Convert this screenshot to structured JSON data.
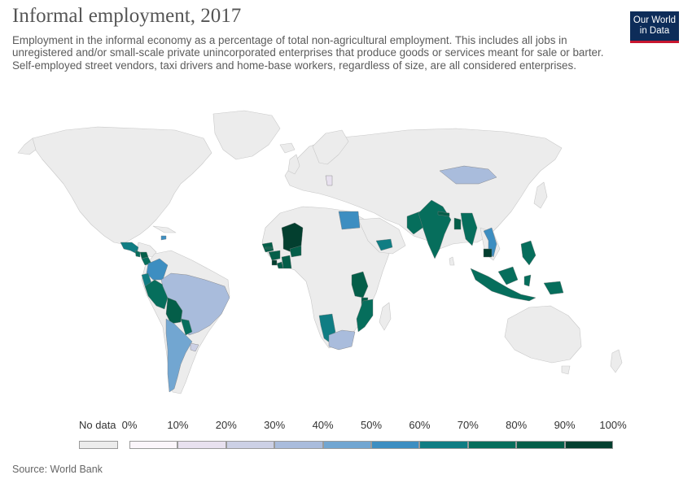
{
  "header": {
    "title": "Informal employment, 2017",
    "subtitle": "Employment in the informal economy as a percentage of total non-agricultural employment. This includes all jobs in unregistered and/or small-scale private unincorporated enterprises that produce goods or services meant for sale or barter. Self-employed street vendors, taxi drivers and home-base workers, regardless of size, are all considered enterprises."
  },
  "logo": {
    "line1": "Our World",
    "line2": "in Data"
  },
  "legend": {
    "no_data_label": "No data",
    "no_data_color": "#ececec",
    "ticks": [
      "0%",
      "10%",
      "20%",
      "30%",
      "40%",
      "50%",
      "60%",
      "70%",
      "80%",
      "90%",
      "100%"
    ],
    "colors": [
      "#fbf6fb",
      "#e8e1ef",
      "#ccd0e5",
      "#a9bcdc",
      "#72a6d1",
      "#3d8ec1",
      "#107d83",
      "#066e5c",
      "#045e49",
      "#033f2f"
    ]
  },
  "source": "Source: World Bank",
  "map_colors": {
    "land": "#ececec",
    "border": "#c8c8c8",
    "ocean": "#ffffff"
  },
  "regions": [
    {
      "name": "Mexico",
      "value": 57
    },
    {
      "name": "Guatemala",
      "value": 80
    },
    {
      "name": "Honduras",
      "value": 82
    },
    {
      "name": "El Salvador",
      "value": 68
    },
    {
      "name": "Dominican Republic",
      "value": 50
    },
    {
      "name": "Colombia",
      "value": 58
    },
    {
      "name": "Ecuador",
      "value": 70
    },
    {
      "name": "Peru",
      "value": 72
    },
    {
      "name": "Brazil",
      "value": 38
    },
    {
      "name": "Bolivia",
      "value": 82
    },
    {
      "name": "Paraguay",
      "value": 72
    },
    {
      "name": "Argentina",
      "value": 48
    },
    {
      "name": "Uruguay",
      "value": 26
    },
    {
      "name": "Mali",
      "value": 95
    },
    {
      "name": "Senegal",
      "value": 90
    },
    {
      "name": "Gambia",
      "value": 86
    },
    {
      "name": "Guinea",
      "value": 85
    },
    {
      "name": "Sierra Leone",
      "value": 92
    },
    {
      "name": "Liberia",
      "value": 88
    },
    {
      "name": "Cote d'Ivoire",
      "value": 87
    },
    {
      "name": "Burkina Faso",
      "value": 89
    },
    {
      "name": "Egypt",
      "value": 53
    },
    {
      "name": "Yemen",
      "value": 73
    },
    {
      "name": "Tanzania",
      "value": 80
    },
    {
      "name": "Malawi",
      "value": 85
    },
    {
      "name": "Mozambique",
      "value": 82
    },
    {
      "name": "Namibia",
      "value": 62
    },
    {
      "name": "South Africa",
      "value": 33
    },
    {
      "name": "Pakistan",
      "value": 78
    },
    {
      "name": "India",
      "value": 80
    },
    {
      "name": "Nepal",
      "value": 83
    },
    {
      "name": "Bangladesh",
      "value": 82
    },
    {
      "name": "Myanmar",
      "value": 78
    },
    {
      "name": "Cambodia",
      "value": 92
    },
    {
      "name": "Vietnam",
      "value": 55
    },
    {
      "name": "Mongolia",
      "value": 35
    },
    {
      "name": "Indonesia",
      "value": 78
    },
    {
      "name": "Philippines",
      "value": 74
    },
    {
      "name": "Papua New Guinea",
      "value": 79
    },
    {
      "name": "Serbia",
      "value": 18
    }
  ]
}
